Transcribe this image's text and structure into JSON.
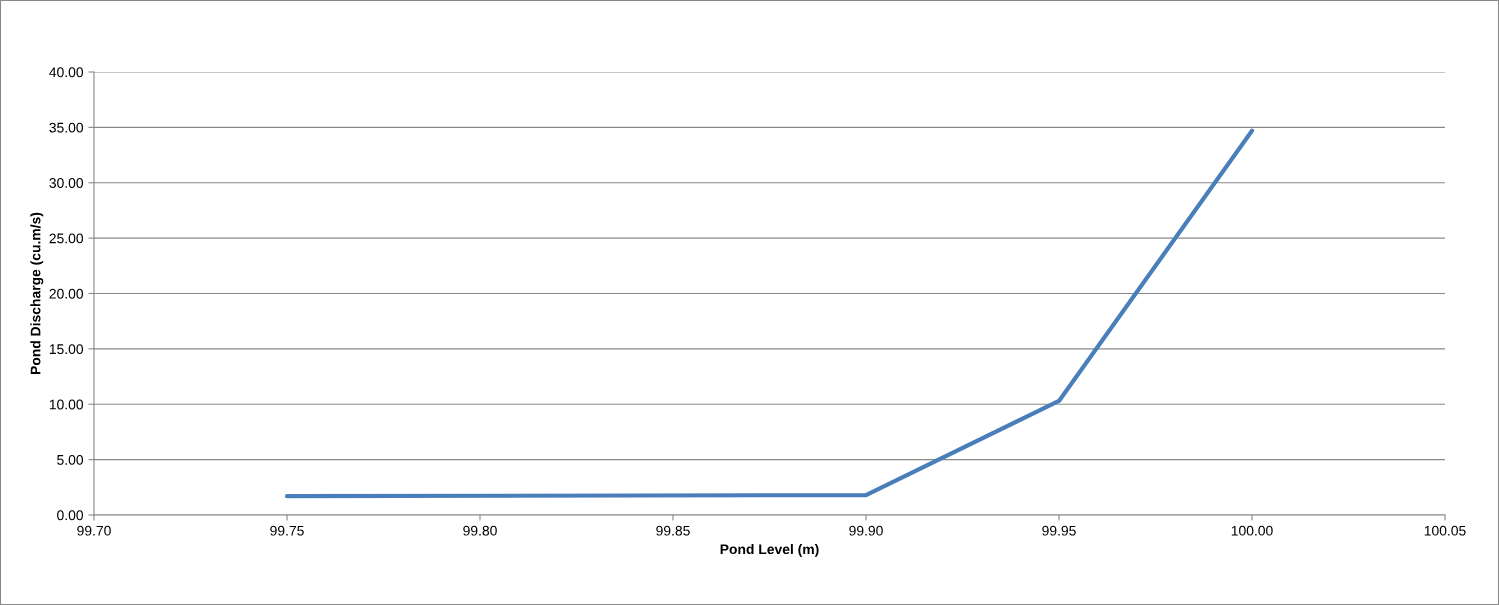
{
  "chart_data": {
    "type": "line",
    "xlabel": "Pond Level (m)",
    "ylabel": "Pond Discharge (cu.m/s)",
    "x": [
      99.75,
      99.9,
      99.95,
      100.0
    ],
    "series": [
      {
        "color": "#4a7ebb",
        "values": [
          1.7,
          1.8,
          10.3,
          34.7
        ]
      }
    ],
    "xlim": [
      99.7,
      100.05
    ],
    "xticks": [
      {
        "value": 99.7,
        "label": "99.70"
      },
      {
        "value": 99.75,
        "label": "99.75"
      },
      {
        "value": 99.8,
        "label": "99.80"
      },
      {
        "value": 99.85,
        "label": "99.85"
      },
      {
        "value": 99.9,
        "label": "99.90"
      },
      {
        "value": 99.95,
        "label": "99.95"
      },
      {
        "value": 100.0,
        "label": "100.00"
      },
      {
        "value": 100.05,
        "label": "100.05"
      }
    ],
    "ylim": [
      0,
      40
    ],
    "yticks": [
      {
        "value": 0,
        "label": "0.00"
      },
      {
        "value": 5,
        "label": "5.00"
      },
      {
        "value": 10,
        "label": "10.00"
      },
      {
        "value": 15,
        "label": "15.00"
      },
      {
        "value": 20,
        "label": "20.00"
      },
      {
        "value": 25,
        "label": "25.00"
      },
      {
        "value": 30,
        "label": "30.00"
      },
      {
        "value": 35,
        "label": "35.00"
      },
      {
        "value": 40,
        "label": "40.00"
      }
    ],
    "grid": "y",
    "marker": "none",
    "line_style": "solid"
  }
}
